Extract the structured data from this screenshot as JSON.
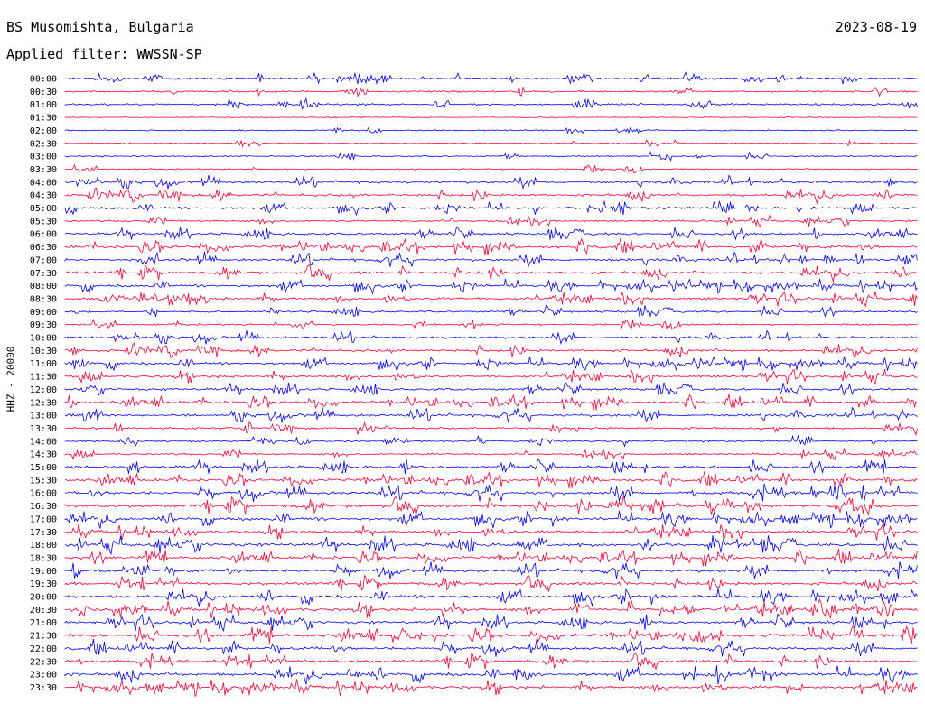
{
  "header": {
    "station": "BS Musomishta, Bulgaria",
    "date": "2023-08-19",
    "filter": "Applied filter: WWSSN-SP"
  },
  "colors": {
    "even_row": "#0000ff",
    "odd_row": "#ff0033",
    "background": "#ffffff"
  },
  "chart_data": {
    "type": "line",
    "title": "BS Musomishta, Bulgaria",
    "ylabel": "HHZ - 20000",
    "row_interval_minutes": 30,
    "row_labels": [
      "00:00",
      "00:30",
      "01:00",
      "01:30",
      "02:00",
      "02:30",
      "03:00",
      "03:30",
      "04:00",
      "04:30",
      "05:00",
      "05:30",
      "06:00",
      "06:30",
      "07:00",
      "07:30",
      "08:00",
      "08:30",
      "09:00",
      "09:30",
      "10:00",
      "10:30",
      "11:00",
      "11:30",
      "12:00",
      "12:30",
      "13:00",
      "13:30",
      "14:00",
      "14:30",
      "15:00",
      "15:30",
      "16:00",
      "16:30",
      "17:00",
      "17:30",
      "18:00",
      "18:30",
      "19:00",
      "19:30",
      "20:00",
      "20:30",
      "21:00",
      "21:30",
      "22:00",
      "22:30",
      "23:00",
      "23:30"
    ],
    "activity_level": [
      0.35,
      0.25,
      0.3,
      0.02,
      0.12,
      0.1,
      0.15,
      0.15,
      0.45,
      0.5,
      0.4,
      0.3,
      0.45,
      0.6,
      0.55,
      0.55,
      0.5,
      0.5,
      0.35,
      0.25,
      0.45,
      0.5,
      0.5,
      0.5,
      0.45,
      0.55,
      0.55,
      0.35,
      0.25,
      0.3,
      0.55,
      0.6,
      0.7,
      0.7,
      0.65,
      0.6,
      0.7,
      0.6,
      0.65,
      0.6,
      0.65,
      0.7,
      0.6,
      0.7,
      0.65,
      0.6,
      0.7,
      0.65
    ]
  }
}
